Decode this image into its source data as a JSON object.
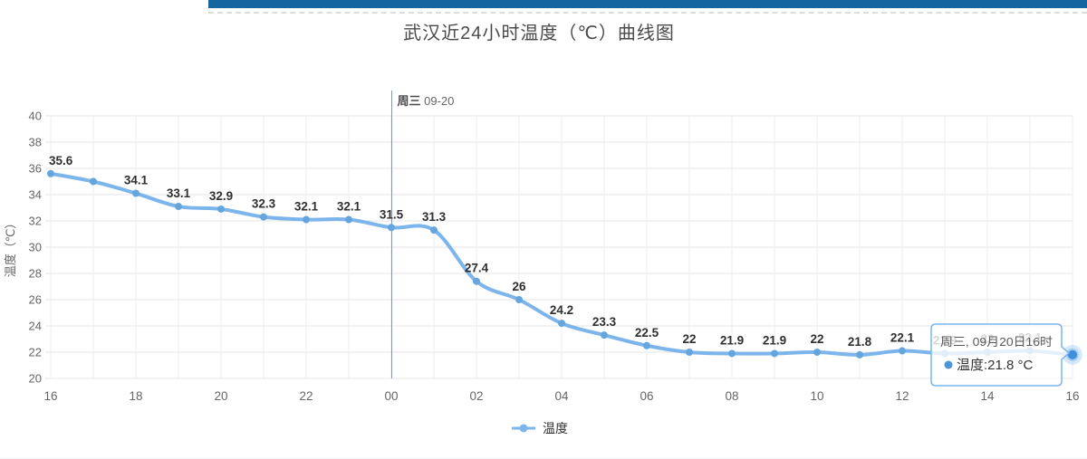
{
  "page": {
    "accent_bar_color": "#15669e"
  },
  "chart_data": {
    "type": "line",
    "title": "武汉近24小时温度（℃）曲线图",
    "ylabel": "温度（℃）",
    "xlabel": "",
    "ylim": [
      20,
      40
    ],
    "y_ticks": [
      "40",
      "38",
      "36",
      "34",
      "32",
      "30",
      "28",
      "26",
      "24",
      "22",
      "20"
    ],
    "x_ticks": [
      "16",
      "18",
      "20",
      "22",
      "00",
      "02",
      "04",
      "06",
      "08",
      "10",
      "12",
      "14",
      "16"
    ],
    "grid": true,
    "legend_position": "bottom",
    "day_marker": {
      "weekday": "周三",
      "date": "09-20",
      "point_index": 8
    },
    "series": [
      {
        "name": "温度",
        "line_color": "#7cb5ec",
        "marker_color": "#64a5de",
        "label_color": "#2f2f2f",
        "points": [
          {
            "hour": "16",
            "value": 35.6,
            "label": "35.6"
          },
          {
            "hour": "17",
            "value": 35.0,
            "label": ""
          },
          {
            "hour": "18",
            "value": 34.1,
            "label": "34.1"
          },
          {
            "hour": "19",
            "value": 33.1,
            "label": "33.1"
          },
          {
            "hour": "20",
            "value": 32.9,
            "label": "32.9"
          },
          {
            "hour": "21",
            "value": 32.3,
            "label": "32.3"
          },
          {
            "hour": "22",
            "value": 32.1,
            "label": "32.1"
          },
          {
            "hour": "23",
            "value": 32.1,
            "label": "32.1"
          },
          {
            "hour": "00",
            "value": 31.5,
            "label": "31.5"
          },
          {
            "hour": "01",
            "value": 31.3,
            "label": "31.3"
          },
          {
            "hour": "02",
            "value": 27.4,
            "label": "27.4"
          },
          {
            "hour": "03",
            "value": 26,
            "label": "26"
          },
          {
            "hour": "04",
            "value": 24.2,
            "label": "24.2"
          },
          {
            "hour": "05",
            "value": 23.3,
            "label": "23.3"
          },
          {
            "hour": "06",
            "value": 22.5,
            "label": "22.5"
          },
          {
            "hour": "07",
            "value": 22,
            "label": "22"
          },
          {
            "hour": "08",
            "value": 21.9,
            "label": "21.9"
          },
          {
            "hour": "09",
            "value": 21.9,
            "label": "21.9"
          },
          {
            "hour": "10",
            "value": 22,
            "label": "22"
          },
          {
            "hour": "11",
            "value": 21.8,
            "label": "21.8"
          },
          {
            "hour": "12",
            "value": 22.1,
            "label": "22.1"
          },
          {
            "hour": "13",
            "value": 21.9,
            "label": "21.9",
            "behind_tooltip": true
          },
          {
            "hour": "14",
            "value": 22,
            "label": "22",
            "behind_tooltip": true
          },
          {
            "hour": "15",
            "value": 22.1,
            "label": "22.1",
            "behind_tooltip": true
          },
          {
            "hour": "16",
            "value": 21.8,
            "label": "",
            "highlighted": true
          }
        ]
      }
    ],
    "tooltip": {
      "title": "周三, 09月20日16时",
      "value_text": "温度:21.8 °C",
      "accent_color": "#7cb5ec",
      "dot_color": "#4a96d9"
    },
    "legend": [
      {
        "label": "温度",
        "color": "#7cb5ec"
      }
    ]
  }
}
